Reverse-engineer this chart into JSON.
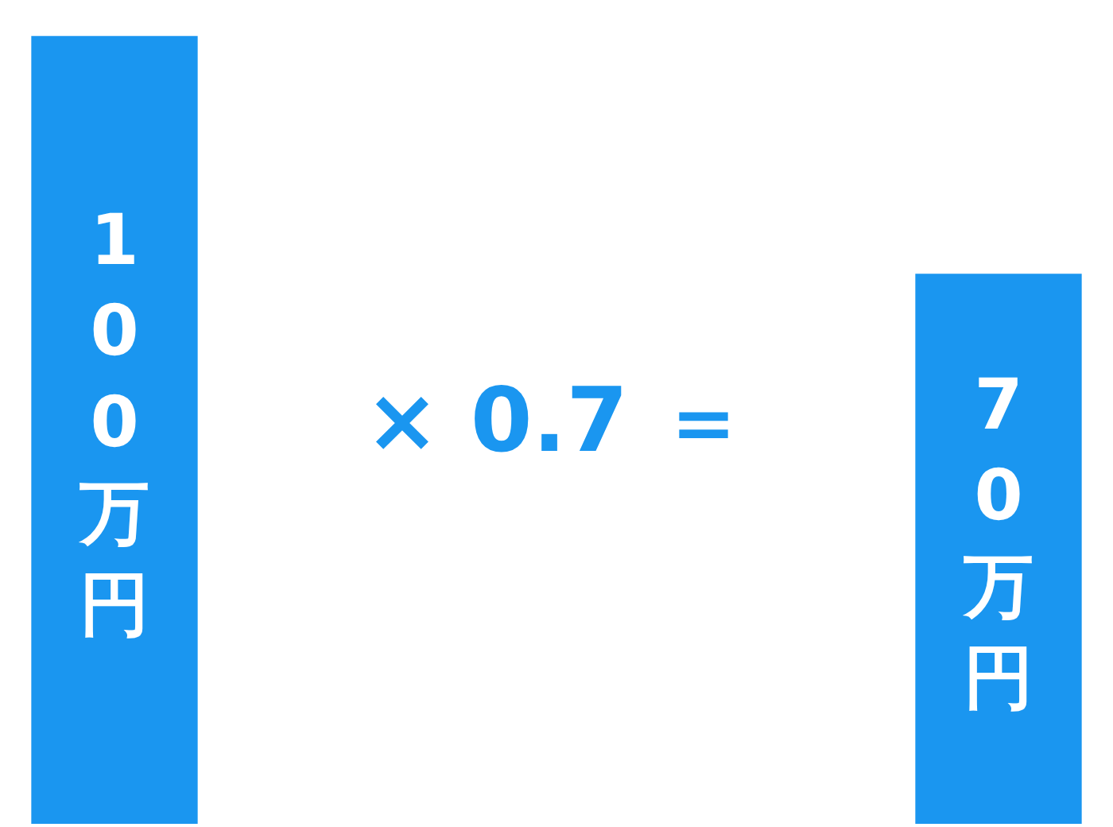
{
  "chart_data": {
    "type": "bar",
    "categories": [
      null,
      null
    ],
    "series": [
      {
        "color": "#1a96f0",
        "values": [
          100,
          70
        ],
        "value_labels": [
          "100万円",
          "70万円"
        ]
      }
    ],
    "annotations": [
      "× 0.7 ＝"
    ],
    "legend": false
  }
}
